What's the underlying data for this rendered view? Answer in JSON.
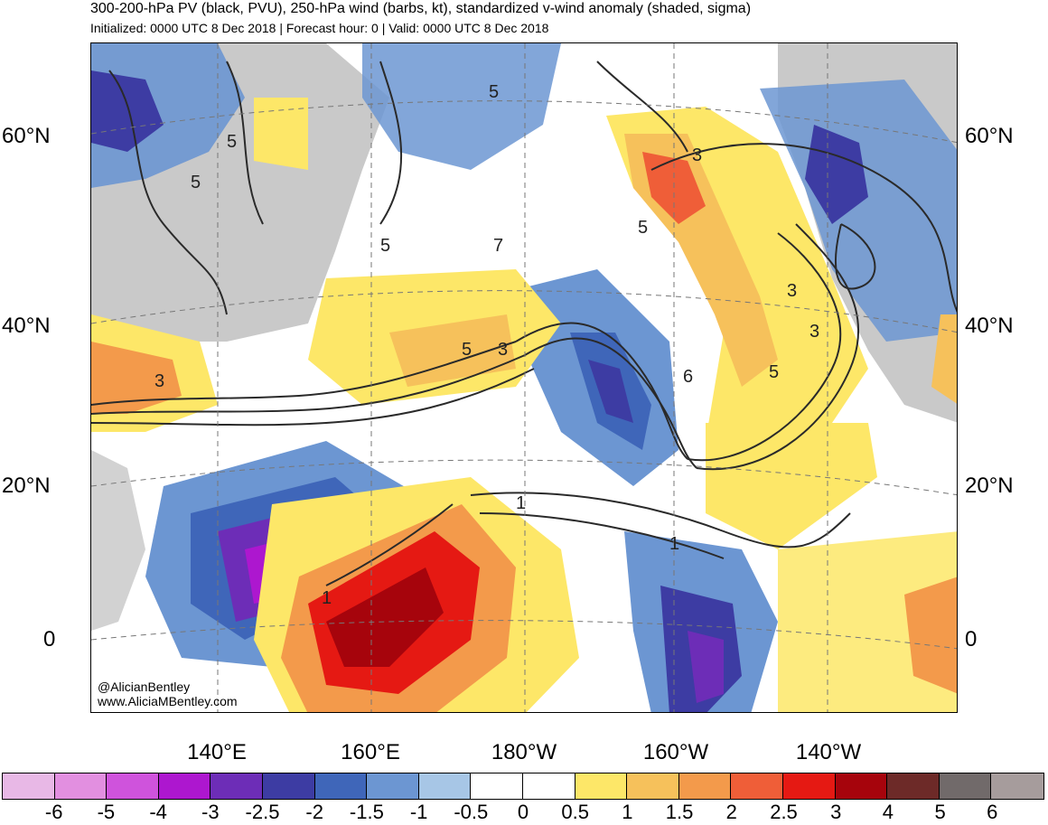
{
  "title": "300-200-hPa PV (black, PVU), 250-hPa wind (barbs, kt), standardized v-wind anomaly (shaded, sigma)",
  "subtitle": "Initialized: 0000 UTC 8 Dec 2018 | Forecast hour: 0 | Valid: 0000 UTC 8 Dec 2018",
  "lat_labels": [
    "60°N",
    "40°N",
    "20°N",
    "0"
  ],
  "lon_labels": [
    "140°E",
    "160°E",
    "180°W",
    "160°W",
    "140°W"
  ],
  "credit": {
    "handle": "@AlicianBentley",
    "site": "www.AliciaMBentley.com"
  },
  "contour_labels": [
    "5",
    "5",
    "5",
    "5",
    "5",
    "3",
    "3",
    "3",
    "5",
    "3",
    "5",
    "3",
    "1",
    "1",
    "1",
    "6",
    "7"
  ],
  "colorbar": {
    "labels": [
      "-6",
      "-5",
      "-4",
      "-3",
      "-2.5",
      "-2",
      "-1.5",
      "-1",
      "-0.5",
      "0",
      "0.5",
      "1",
      "1.5",
      "2",
      "2.5",
      "3",
      "4",
      "5",
      "6"
    ],
    "colors": [
      "#e8b8e6",
      "#e28fe0",
      "#cf53dc",
      "#ad17cf",
      "#6d2db7",
      "#3d3ca3",
      "#3f66b9",
      "#6c96d2",
      "#a7c6e6",
      "#ffffff",
      "#ffffff",
      "#fde768",
      "#f6c15b",
      "#f39a4b",
      "#ef5e38",
      "#e51913",
      "#a6040c",
      "#6d2a28",
      "#716a6a",
      "#a69c9c"
    ]
  }
}
